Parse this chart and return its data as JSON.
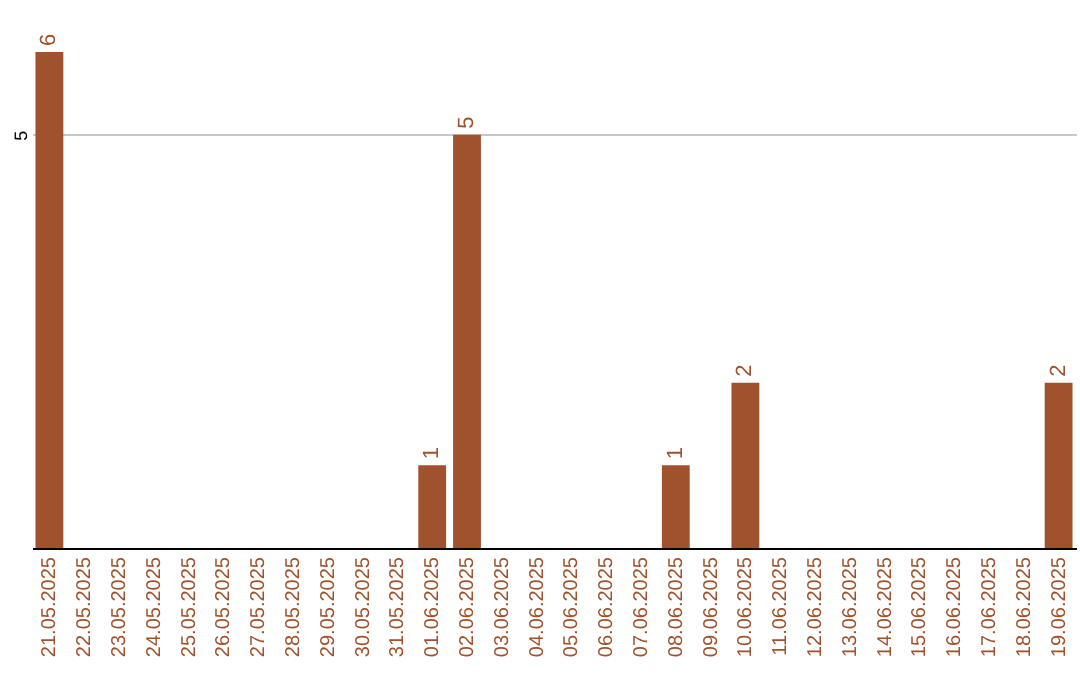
{
  "chart_data": {
    "type": "bar",
    "categories": [
      "21.05.2025",
      "22.05.2025",
      "23.05.2025",
      "24.05.2025",
      "25.05.2025",
      "26.05.2025",
      "27.05.2025",
      "28.05.2025",
      "29.05.2025",
      "30.05.2025",
      "31.05.2025",
      "01.06.2025",
      "02.06.2025",
      "03.06.2025",
      "04.06.2025",
      "05.06.2025",
      "06.06.2025",
      "07.06.2025",
      "08.06.2025",
      "09.06.2025",
      "10.06.2025",
      "11.06.2025",
      "12.06.2025",
      "13.06.2025",
      "14.06.2025",
      "15.06.2025",
      "16.06.2025",
      "17.06.2025",
      "18.06.2025",
      "19.06.2025"
    ],
    "values": [
      6,
      0,
      0,
      0,
      0,
      0,
      0,
      0,
      0,
      0,
      0,
      1,
      5,
      0,
      0,
      0,
      0,
      0,
      1,
      0,
      2,
      0,
      0,
      0,
      0,
      0,
      0,
      0,
      0,
      2
    ],
    "value_labels": [
      "6",
      null,
      null,
      null,
      null,
      null,
      null,
      null,
      null,
      null,
      null,
      "1",
      "5",
      null,
      null,
      null,
      null,
      null,
      "1",
      null,
      "2",
      null,
      null,
      null,
      null,
      null,
      null,
      null,
      null,
      "2"
    ],
    "color": "#a0522d",
    "ylim": [
      0,
      6
    ],
    "yticks": [
      5
    ],
    "grid": "y"
  }
}
